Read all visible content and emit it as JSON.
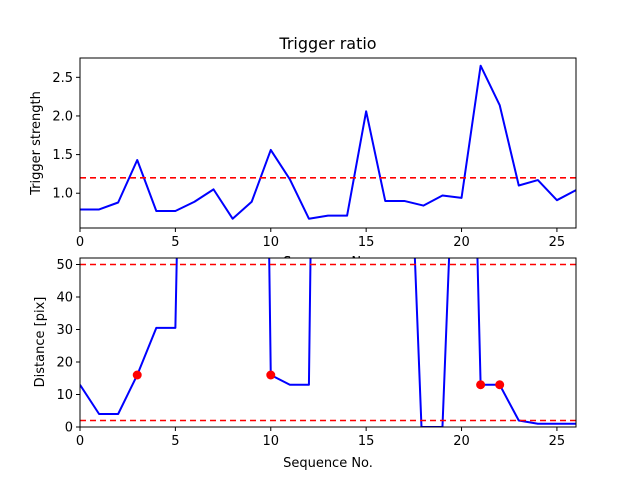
{
  "chart_data": [
    {
      "type": "line",
      "title": "Trigger ratio",
      "xlabel": "Sequence No.",
      "ylabel": "Trigger strength",
      "xlim": [
        0,
        26
      ],
      "ylim": [
        0.55,
        2.75
      ],
      "xticks": [
        0,
        5,
        10,
        15,
        20,
        25
      ],
      "yticks": [
        1.0,
        1.5,
        2.0,
        2.5
      ],
      "ytick_labels": [
        "1.0",
        "1.5",
        "2.0",
        "2.5"
      ],
      "grid": false,
      "colors": {
        "line": "#0000ff",
        "threshold": "#ff0000"
      },
      "series": [
        {
          "x": [
            0,
            1,
            2,
            3,
            4,
            5,
            6,
            7,
            8,
            9,
            10,
            11,
            12,
            13,
            14,
            15,
            16,
            17,
            18,
            19,
            20,
            21,
            22,
            23,
            24,
            25,
            26
          ],
          "values": [
            0.79,
            0.79,
            0.88,
            1.43,
            0.77,
            0.77,
            0.89,
            1.05,
            0.67,
            0.89,
            1.56,
            1.18,
            0.67,
            0.71,
            0.71,
            2.06,
            0.9,
            0.9,
            0.84,
            0.97,
            0.94,
            2.65,
            2.14,
            1.1,
            1.17,
            0.91,
            1.04
          ]
        }
      ],
      "hlines": [
        1.2
      ]
    },
    {
      "type": "line",
      "title": "",
      "xlabel": "Sequence No.",
      "ylabel": "Distance [pix]",
      "xlim": [
        0,
        26
      ],
      "ylim": [
        0,
        52
      ],
      "xticks": [
        0,
        5,
        10,
        15,
        20,
        25
      ],
      "yticks": [
        0,
        10,
        20,
        30,
        40,
        50
      ],
      "grid": false,
      "colors": {
        "line": "#0000ff",
        "threshold": "#ff0000",
        "marker": "#ff0000"
      },
      "series": [
        {
          "x": [
            0,
            1,
            2,
            3,
            4,
            5,
            5.1,
            9.9,
            10,
            11,
            12,
            12.1,
            17.5,
            17.9,
            19,
            19.4,
            20.8,
            21,
            22,
            23,
            24,
            25,
            26
          ],
          "values": [
            13,
            4,
            4,
            16,
            30.5,
            30.5,
            60,
            60,
            16,
            13,
            13,
            60,
            60,
            0,
            0,
            60,
            60,
            13,
            13,
            2,
            1,
            1,
            1
          ]
        }
      ],
      "markers": {
        "x": [
          3,
          10,
          21,
          22
        ],
        "y": [
          16,
          16,
          13,
          13
        ]
      },
      "hlines": [
        50,
        2
      ]
    }
  ]
}
